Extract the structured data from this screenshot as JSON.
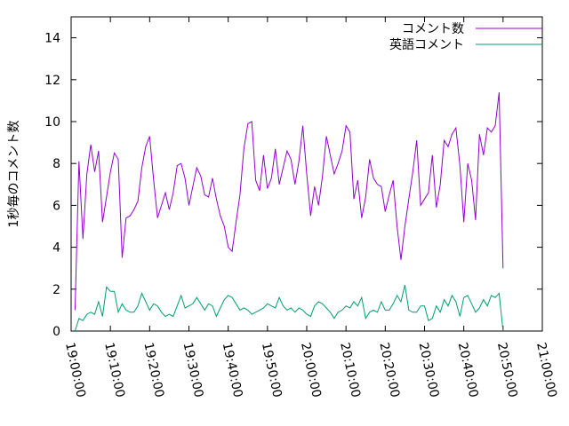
{
  "chart_data": {
    "type": "line",
    "y_label": "1秒毎のコメント数",
    "x": [
      "19:01:00",
      "19:02:00",
      "19:03:00",
      "19:04:00",
      "19:05:00",
      "19:06:00",
      "19:07:00",
      "19:08:00",
      "19:09:00",
      "19:10:00",
      "19:11:00",
      "19:12:00",
      "19:13:00",
      "19:14:00",
      "19:15:00",
      "19:16:00",
      "19:17:00",
      "19:18:00",
      "19:19:00",
      "19:20:00",
      "19:21:00",
      "19:22:00",
      "19:23:00",
      "19:24:00",
      "19:25:00",
      "19:26:00",
      "19:27:00",
      "19:28:00",
      "19:29:00",
      "19:30:00",
      "19:31:00",
      "19:32:00",
      "19:33:00",
      "19:34:00",
      "19:35:00",
      "19:36:00",
      "19:37:00",
      "19:38:00",
      "19:39:00",
      "19:40:00",
      "19:41:00",
      "19:42:00",
      "19:43:00",
      "19:44:00",
      "19:45:00",
      "19:46:00",
      "19:47:00",
      "19:48:00",
      "19:49:00",
      "19:50:00",
      "19:51:00",
      "19:52:00",
      "19:53:00",
      "19:54:00",
      "19:55:00",
      "19:56:00",
      "19:57:00",
      "19:58:00",
      "19:59:00",
      "20:00:00",
      "20:01:00",
      "20:02:00",
      "20:03:00",
      "20:04:00",
      "20:05:00",
      "20:06:00",
      "20:07:00",
      "20:08:00",
      "20:09:00",
      "20:10:00",
      "20:11:00",
      "20:12:00",
      "20:13:00",
      "20:14:00",
      "20:15:00",
      "20:16:00",
      "20:17:00",
      "20:18:00",
      "20:19:00",
      "20:20:00",
      "20:21:00",
      "20:22:00",
      "20:23:00",
      "20:24:00",
      "20:25:00",
      "20:26:00",
      "20:27:00",
      "20:28:00",
      "20:29:00",
      "20:30:00",
      "20:31:00",
      "20:32:00",
      "20:33:00",
      "20:34:00",
      "20:35:00",
      "20:36:00",
      "20:37:00",
      "20:38:00",
      "20:39:00",
      "20:40:00",
      "20:41:00",
      "20:42:00",
      "20:43:00",
      "20:44:00",
      "20:45:00",
      "20:46:00",
      "20:47:00",
      "20:48:00",
      "20:49:00",
      "20:50:00"
    ],
    "series": [
      {
        "name": "コメント数",
        "color": "#9400d3",
        "values": [
          1.0,
          8.1,
          4.4,
          7.5,
          8.9,
          7.6,
          8.6,
          5.2,
          6.4,
          7.6,
          8.5,
          8.2,
          3.5,
          5.4,
          5.5,
          5.8,
          6.2,
          7.8,
          8.8,
          9.3,
          7.2,
          5.4,
          6.0,
          6.6,
          5.8,
          6.6,
          7.9,
          8.0,
          7.3,
          6.0,
          6.9,
          7.8,
          7.4,
          6.5,
          6.4,
          7.3,
          6.3,
          5.5,
          5.0,
          4.0,
          3.8,
          5.2,
          6.5,
          8.7,
          9.9,
          10.0,
          7.2,
          6.7,
          8.4,
          6.8,
          7.3,
          8.7,
          7.0,
          7.8,
          8.6,
          8.2,
          7.0,
          8.1,
          9.8,
          7.5,
          5.5,
          6.9,
          6.0,
          7.4,
          9.3,
          8.4,
          7.5,
          8.0,
          8.6,
          9.8,
          9.5,
          6.3,
          7.2,
          5.4,
          6.4,
          8.2,
          7.3,
          7.0,
          6.9,
          5.7,
          6.5,
          7.2,
          5.0,
          3.4,
          5.0,
          6.3,
          7.6,
          9.1,
          6.0,
          6.3,
          6.6,
          8.4,
          5.9,
          7.0,
          9.1,
          8.8,
          9.4,
          9.7,
          7.9,
          5.2,
          8.0,
          7.2,
          5.3,
          9.4,
          8.4,
          9.7,
          9.5,
          9.8,
          11.4,
          3.0
        ]
      },
      {
        "name": "英語コメント",
        "color": "#009e73",
        "values": [
          0.0,
          0.6,
          0.5,
          0.8,
          0.9,
          0.8,
          1.4,
          0.7,
          2.1,
          1.9,
          1.9,
          0.9,
          1.3,
          1.0,
          0.9,
          0.9,
          1.2,
          1.8,
          1.4,
          1.0,
          1.3,
          1.2,
          0.9,
          0.7,
          0.8,
          0.7,
          1.2,
          1.7,
          1.1,
          1.2,
          1.3,
          1.6,
          1.3,
          1.0,
          1.3,
          1.2,
          0.7,
          1.1,
          1.5,
          1.7,
          1.6,
          1.3,
          1.0,
          1.1,
          1.0,
          0.8,
          0.9,
          1.0,
          1.1,
          1.3,
          1.2,
          1.1,
          1.6,
          1.2,
          1.0,
          1.1,
          0.9,
          1.1,
          1.0,
          0.8,
          0.7,
          1.2,
          1.4,
          1.3,
          1.1,
          0.9,
          0.6,
          0.9,
          1.0,
          1.2,
          1.1,
          1.4,
          1.2,
          1.6,
          0.6,
          0.9,
          1.0,
          0.9,
          1.4,
          1.0,
          1.0,
          1.3,
          1.7,
          1.4,
          2.2,
          1.0,
          0.9,
          0.9,
          1.2,
          1.2,
          0.5,
          0.6,
          1.2,
          0.9,
          1.5,
          1.2,
          1.7,
          1.4,
          0.7,
          1.6,
          1.7,
          1.3,
          0.9,
          1.1,
          1.5,
          1.2,
          1.7,
          1.6,
          1.8,
          0.0
        ]
      }
    ],
    "xlim": [
      "19:00:00",
      "21:00:00"
    ],
    "xticks": [
      "19:00:00",
      "19:10:00",
      "19:20:00",
      "19:30:00",
      "19:40:00",
      "19:50:00",
      "20:00:00",
      "20:10:00",
      "20:20:00",
      "20:30:00",
      "20:40:00",
      "20:50:00",
      "21:00:00"
    ],
    "ylim": [
      0,
      15
    ],
    "yticks": [
      0,
      2,
      4,
      6,
      8,
      10,
      12,
      14
    ],
    "legend": "top-right"
  }
}
